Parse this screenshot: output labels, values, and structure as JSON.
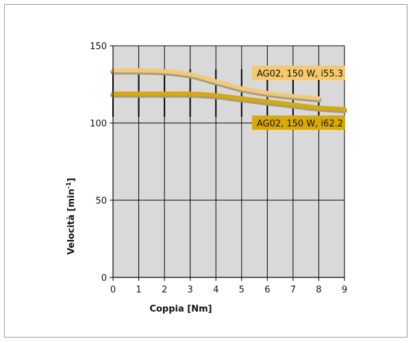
{
  "chart_data": {
    "type": "line",
    "xlabel": "Coppia [Nm]",
    "ylabel": "Velocità [min",
    "ylabel_sup": "-1",
    "ylabel_close": "]",
    "xlim": [
      0,
      9
    ],
    "ylim": [
      0,
      150
    ],
    "x_ticks": [
      0,
      1,
      2,
      3,
      4,
      5,
      6,
      7,
      8,
      9
    ],
    "y_ticks": [
      0,
      50,
      100,
      150
    ],
    "grid": true,
    "series": [
      {
        "name": "AG02, 150 W, i55.3",
        "color": "#f6c96a",
        "x": [
          0,
          1,
          2,
          3,
          4,
          5,
          6,
          7,
          8
        ],
        "y": [
          134,
          134,
          133.5,
          131.5,
          127,
          122.5,
          119.5,
          117.5,
          116
        ]
      },
      {
        "name": "AG02, 150 W, i62.2",
        "color": "#dba900",
        "x": [
          0,
          1,
          2,
          3,
          4,
          5,
          6,
          7,
          8,
          9
        ],
        "y": [
          119,
          119,
          119,
          119,
          118,
          116,
          114,
          112,
          110,
          109
        ]
      }
    ]
  }
}
